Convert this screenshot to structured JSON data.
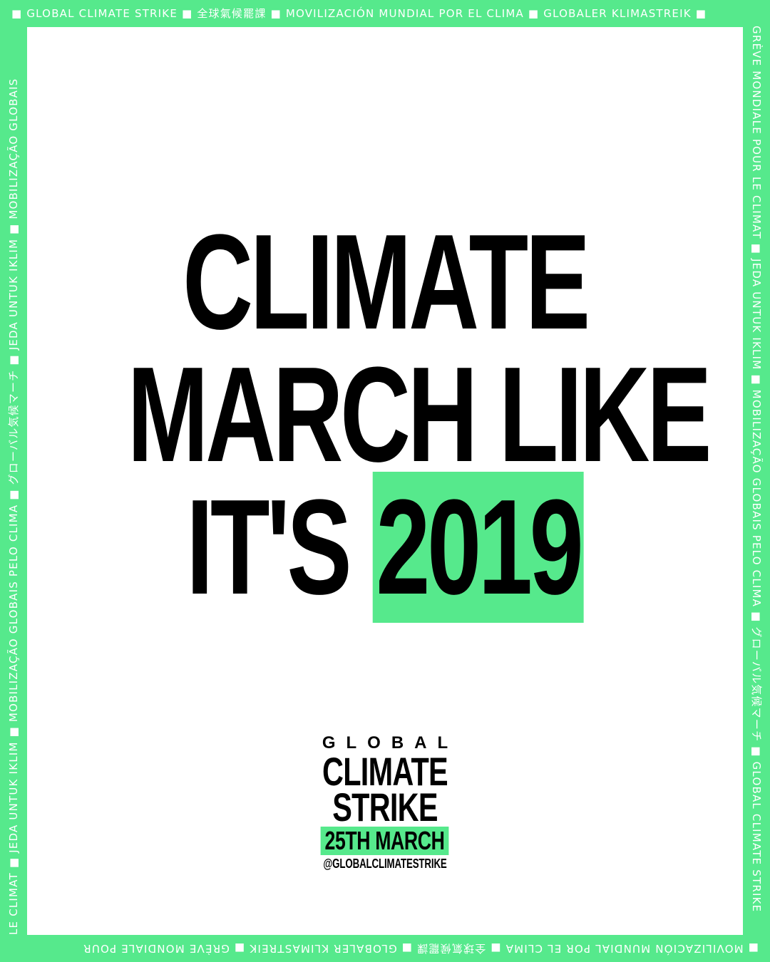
{
  "border": {
    "top": "■ GLOBAL CLIMATE STRIKE ■ 全球氣候罷課 ■ MOVILIZACIÓN MUNDIAL POR EL CLIMA ■ GLOBALER KLIMASTREIK ■",
    "right": "GRÈVE MONDIALE POUR LE CLIMAT ■ JEDA UNTUK IKLIM ■ MOBILIZAÇÃO GLOBAIS PELO CLIMA ■ グローバル気候マーチ ■ GLOBAL CLIMATE STRIKE",
    "bottom": "■ MOVILIZACIÓN MUNDIAL POR EL CLIMA ■ 全球氣候罷課 ■ GLOBALER KLIMASTREIK ■ GRÈVE MONDIALE POUR",
    "left": "LE CLIMAT ■ JEDA UNTUK IKLIM ■ MOBILIZAÇÃO GLOBAIS PELO CLIMA ■ グローバル気候マーチ ■ JEDA UNTUK IKLIM ■ MOBILIZAÇÃO GLOBAIS"
  },
  "headline": {
    "line1": "CLIMATE",
    "line2": "MARCH LIKE",
    "line3_prefix": "IT'S",
    "line3_year": "2019"
  },
  "logo": {
    "global": "GLOBAL",
    "climate": "CLIMATE",
    "strike": "STRIKE",
    "date": "25TH MARCH",
    "handle": "@GLOBALCLIMATESTRIKE"
  },
  "colors": {
    "accent": "#56e98c",
    "panel": "#ffffff",
    "text": "#000000"
  }
}
